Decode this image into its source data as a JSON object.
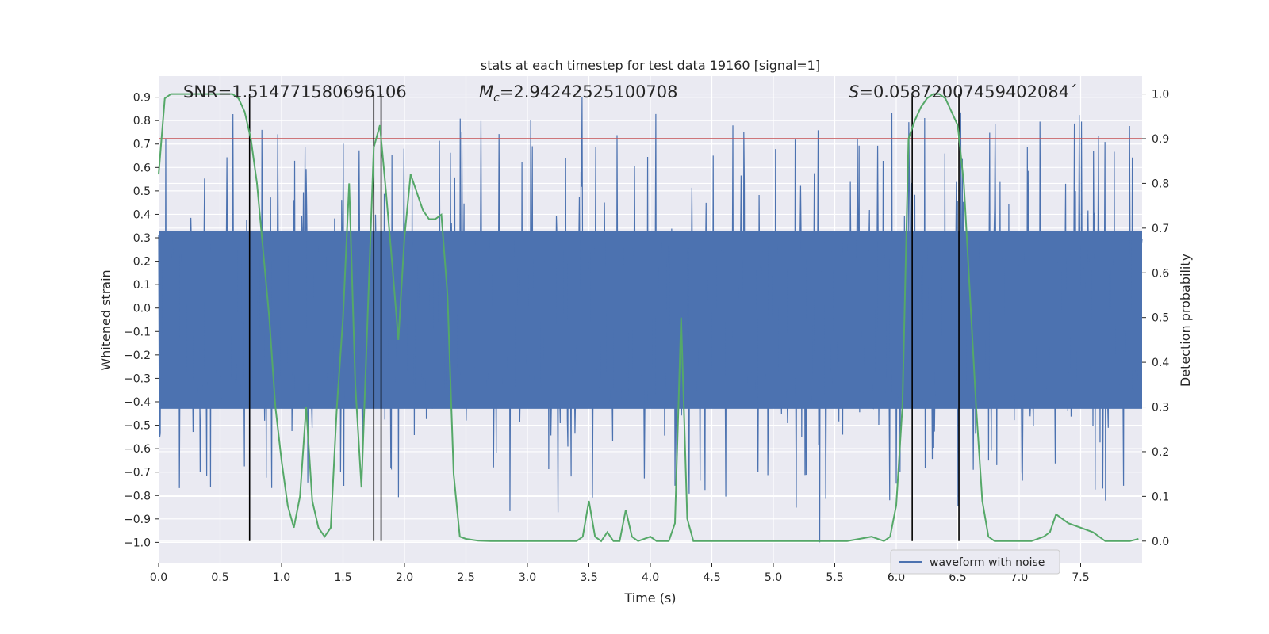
{
  "chart_data": {
    "type": "line",
    "title": "stats at each timestep for test data 19160 [signal=1]",
    "xlabel": "Time (s)",
    "ylabel_left": "Whitened strain",
    "ylabel_right": "Detection probability",
    "xlim": [
      0.0,
      8.0
    ],
    "ylim_left": [
      -1.09,
      0.99
    ],
    "ylim_right": [
      -0.05,
      1.04
    ],
    "x_ticks": [
      "0.0",
      "0.5",
      "1.0",
      "1.5",
      "2.0",
      "2.5",
      "3.0",
      "3.5",
      "4.0",
      "4.5",
      "5.0",
      "5.5",
      "6.0",
      "6.5",
      "7.0",
      "7.5"
    ],
    "y_left_ticks": [
      "0.9",
      "0.8",
      "0.7",
      "0.6",
      "0.5",
      "0.4",
      "0.3",
      "0.2",
      "0.1",
      "0.0",
      "−0.1",
      "−0.2",
      "−0.3",
      "−0.4",
      "−0.5",
      "−0.6",
      "−0.7",
      "−0.8",
      "−0.9",
      "−1.0"
    ],
    "y_right_ticks": [
      "1.0",
      "0.9",
      "0.8",
      "0.7",
      "0.6",
      "0.5",
      "0.4",
      "0.3",
      "0.2",
      "0.1",
      "0.0"
    ],
    "grid": true,
    "legend_position": "lower-right",
    "annotations": {
      "snr": "SNR=1.514771580696106",
      "mc_prefix": "M",
      "mc_sub": "c",
      "mc_value": "=2.94242525100708",
      "s_prefix": "S",
      "s_value": "=0.05872007459402084´"
    },
    "threshold": 0.9,
    "vertical_lines": [
      0.74,
      1.75,
      1.81,
      6.13,
      6.51
    ],
    "series": [
      {
        "name": "waveform with noise",
        "color": "#4c72b0",
        "kind": "noise-envelope",
        "typical_range": [
          -0.43,
          0.33
        ],
        "peak_range": [
          -1.0,
          0.9
        ]
      },
      {
        "color": "#55a868",
        "axis": "right",
        "x": [
          0.0,
          0.05,
          0.1,
          0.15,
          0.2,
          0.25,
          0.3,
          0.35,
          0.4,
          0.45,
          0.5,
          0.55,
          0.6,
          0.65,
          0.7,
          0.75,
          0.8,
          0.85,
          0.9,
          0.95,
          1.0,
          1.05,
          1.1,
          1.15,
          1.2,
          1.25,
          1.3,
          1.35,
          1.4,
          1.45,
          1.5,
          1.55,
          1.6,
          1.65,
          1.7,
          1.75,
          1.8,
          1.85,
          1.9,
          1.95,
          2.0,
          2.05,
          2.1,
          2.15,
          2.2,
          2.25,
          2.3,
          2.35,
          2.4,
          2.45,
          2.5,
          2.55,
          2.6,
          2.7,
          2.8,
          2.9,
          3.0,
          3.1,
          3.2,
          3.3,
          3.4,
          3.45,
          3.5,
          3.55,
          3.6,
          3.65,
          3.7,
          3.75,
          3.8,
          3.85,
          3.9,
          4.0,
          4.05,
          4.1,
          4.15,
          4.2,
          4.25,
          4.3,
          4.35,
          4.4,
          4.5,
          4.6,
          4.7,
          4.8,
          4.9,
          5.0,
          5.2,
          5.4,
          5.6,
          5.7,
          5.8,
          5.9,
          5.95,
          6.0,
          6.05,
          6.1,
          6.15,
          6.2,
          6.25,
          6.3,
          6.35,
          6.4,
          6.45,
          6.5,
          6.55,
          6.6,
          6.65,
          6.7,
          6.75,
          6.8,
          6.9,
          7.0,
          7.1,
          7.2,
          7.25,
          7.3,
          7.35,
          7.4,
          7.5,
          7.6,
          7.7,
          7.8,
          7.9,
          7.97
        ],
        "y": [
          0.82,
          0.99,
          1.0,
          1.0,
          1.0,
          1.0,
          1.0,
          1.0,
          1.0,
          1.0,
          1.0,
          1.0,
          1.0,
          0.99,
          0.96,
          0.9,
          0.8,
          0.65,
          0.5,
          0.3,
          0.18,
          0.08,
          0.03,
          0.1,
          0.3,
          0.09,
          0.03,
          0.01,
          0.03,
          0.3,
          0.5,
          0.8,
          0.35,
          0.12,
          0.5,
          0.88,
          0.93,
          0.78,
          0.62,
          0.45,
          0.68,
          0.82,
          0.78,
          0.74,
          0.72,
          0.72,
          0.73,
          0.55,
          0.15,
          0.01,
          0.005,
          0.003,
          0.001,
          0.0,
          0.0,
          0.0,
          0.0,
          0.0,
          0.0,
          0.0,
          0.0,
          0.01,
          0.09,
          0.01,
          0.0,
          0.02,
          0.0,
          0.0,
          0.07,
          0.01,
          0.0,
          0.01,
          0.0,
          0.0,
          0.0,
          0.04,
          0.5,
          0.05,
          0.0,
          0.0,
          0.0,
          0.0,
          0.0,
          0.0,
          0.0,
          0.0,
          0.0,
          0.0,
          0.0,
          0.005,
          0.01,
          0.0,
          0.01,
          0.08,
          0.3,
          0.9,
          0.94,
          0.97,
          0.99,
          1.0,
          1.0,
          0.99,
          0.96,
          0.93,
          0.8,
          0.55,
          0.3,
          0.09,
          0.01,
          0.0,
          0.0,
          0.0,
          0.0,
          0.01,
          0.02,
          0.06,
          0.05,
          0.04,
          0.03,
          0.02,
          0.0,
          0.0,
          0.0,
          0.005
        ]
      }
    ]
  }
}
